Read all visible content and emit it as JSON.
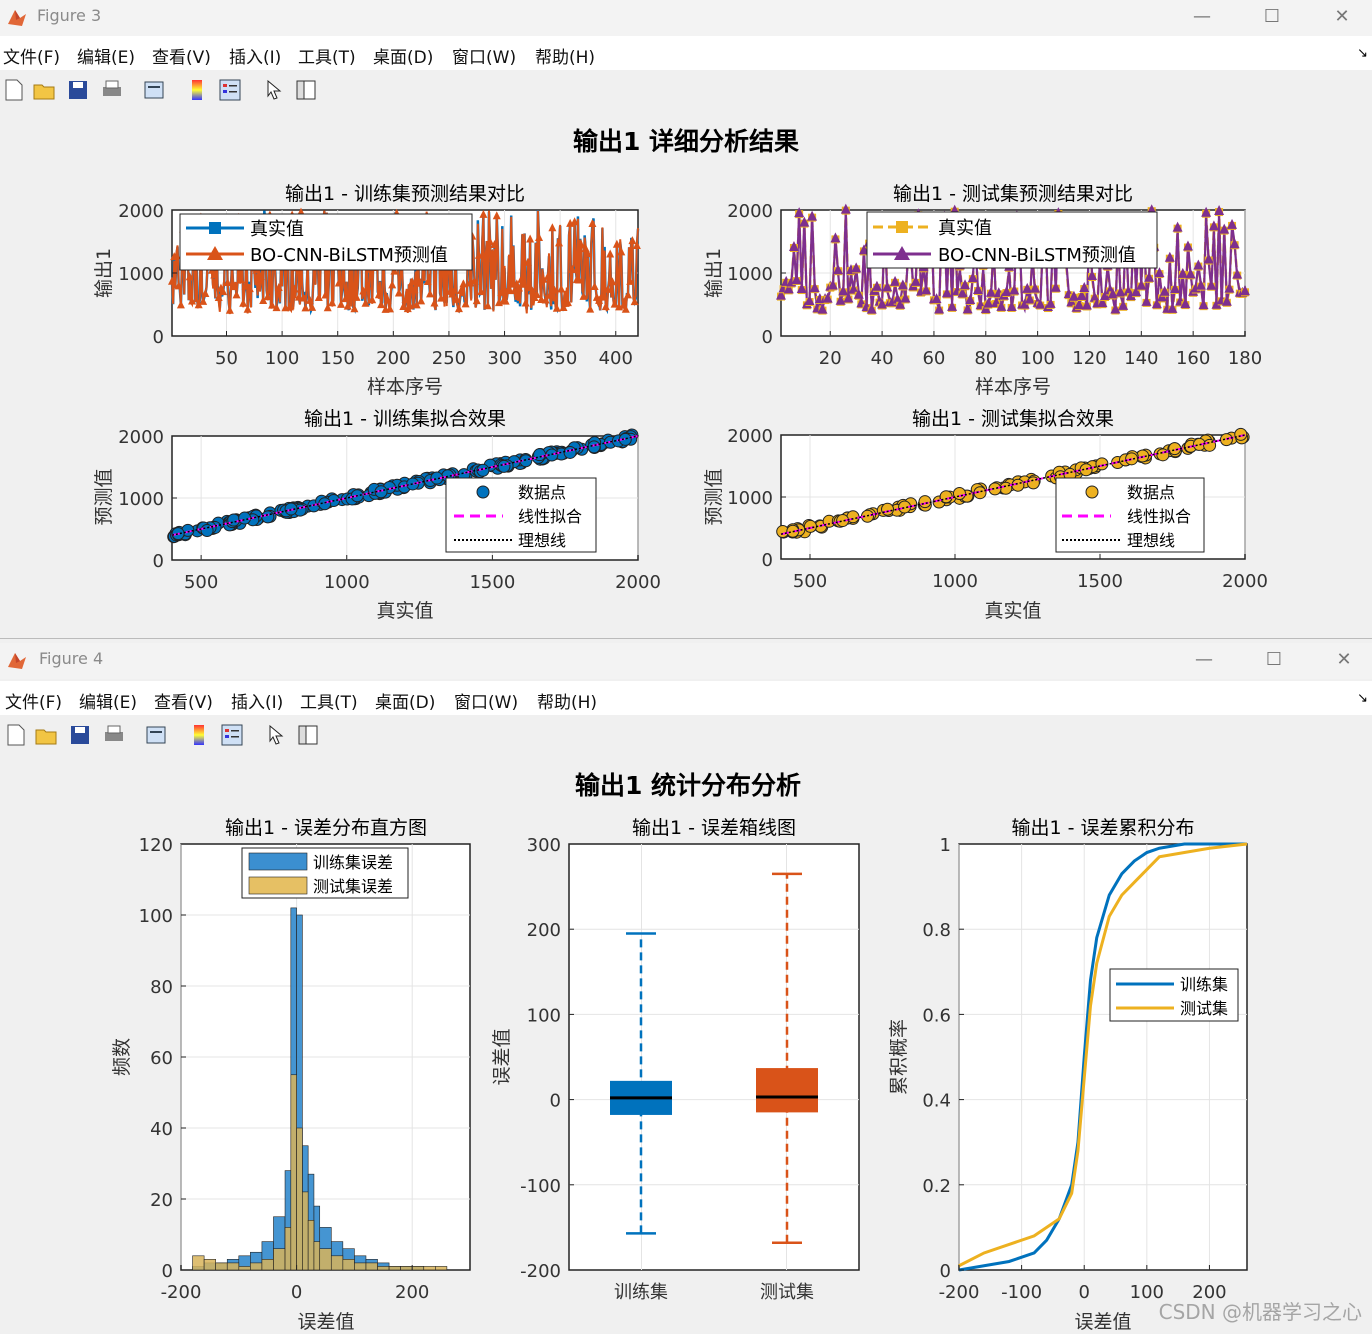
{
  "figure3": {
    "title": "Figure 3",
    "menu": [
      "文件(F)",
      "编辑(E)",
      "查看(V)",
      "插入(I)",
      "工具(T)",
      "桌面(D)",
      "窗口(W)",
      "帮助(H)"
    ],
    "suptitle": "输出1 详细分析结果",
    "train_series": {
      "title": "输出1 - 训练集预测结果对比",
      "xlabel": "样本序号",
      "ylabel": "输出1",
      "xticks": [
        "50",
        "100",
        "150",
        "200",
        "250",
        "300",
        "350",
        "400"
      ],
      "yticks": [
        "0",
        "1000",
        "2000"
      ],
      "legend": [
        "真实值",
        "BO-CNN-BiLSTM预测值"
      ]
    },
    "test_series": {
      "title": "输出1 - 测试集预测结果对比",
      "xlabel": "样本序号",
      "ylabel": "输出1",
      "xticks": [
        "20",
        "40",
        "60",
        "80",
        "100",
        "120",
        "140",
        "160",
        "180"
      ],
      "yticks": [
        "0",
        "1000",
        "2000"
      ],
      "legend": [
        "真实值",
        "BO-CNN-BiLSTM预测值"
      ]
    },
    "train_fit": {
      "title": "输出1 - 训练集拟合效果",
      "xlabel": "真实值",
      "ylabel": "预测值",
      "xticks": [
        "500",
        "1000",
        "1500",
        "2000"
      ],
      "yticks": [
        "0",
        "1000",
        "2000"
      ],
      "legend": [
        "数据点",
        "线性拟合",
        "理想线"
      ]
    },
    "test_fit": {
      "title": "输出1 - 测试集拟合效果",
      "xlabel": "真实值",
      "ylabel": "预测值",
      "xticks": [
        "500",
        "1000",
        "1500",
        "2000"
      ],
      "yticks": [
        "0",
        "1000",
        "2000"
      ],
      "legend": [
        "数据点",
        "线性拟合",
        "理想线"
      ]
    }
  },
  "figure4": {
    "title": "Figure 4",
    "menu": [
      "文件(F)",
      "编辑(E)",
      "查看(V)",
      "插入(I)",
      "工具(T)",
      "桌面(D)",
      "窗口(W)",
      "帮助(H)"
    ],
    "suptitle": "输出1 统计分布分析",
    "hist": {
      "title": "输出1 - 误差分布直方图",
      "xlabel": "误差值",
      "ylabel": "频数",
      "xticks": [
        "-200",
        "0",
        "200"
      ],
      "yticks": [
        "0",
        "20",
        "40",
        "60",
        "80",
        "100",
        "120"
      ],
      "legend": [
        "训练集误差",
        "测试集误差"
      ]
    },
    "box": {
      "title": "输出1 - 误差箱线图",
      "ylabel": "误差值",
      "categories": [
        "训练集",
        "测试集"
      ],
      "yticks": [
        "-200",
        "-100",
        "0",
        "100",
        "200",
        "300"
      ]
    },
    "cdf": {
      "title": "输出1 - 误差累积分布",
      "xlabel": "误差值",
      "ylabel": "累积概率",
      "xticks": [
        "-200",
        "-100",
        "0",
        "100",
        "200"
      ],
      "yticks": [
        "0",
        "0.2",
        "0.4",
        "0.6",
        "0.8",
        "1"
      ],
      "legend": [
        "训练集",
        "测试集"
      ]
    }
  },
  "watermark": "CSDN @机器学习之心",
  "colors": {
    "blue": "#0072bd",
    "orange": "#d95319",
    "yellow": "#edb120",
    "purple": "#7e2f8e",
    "magenta": "#ff00ff"
  },
  "chart_data": [
    {
      "type": "line",
      "title": "输出1 - 训练集预测结果对比",
      "xlabel": "样本序号",
      "ylabel": "输出1",
      "xlim": [
        1,
        420
      ],
      "ylim": [
        0,
        2000
      ],
      "series": [
        {
          "name": "真实值",
          "values_range": [
            400,
            2000
          ]
        },
        {
          "name": "BO-CNN-BiLSTM预测值",
          "values_range": [
            400,
            2000
          ]
        }
      ],
      "legend": "top-left",
      "grid": true
    },
    {
      "type": "line",
      "title": "输出1 - 测试集预测结果对比",
      "xlabel": "样本序号",
      "ylabel": "输出1",
      "xlim": [
        1,
        180
      ],
      "ylim": [
        0,
        2000
      ],
      "series": [
        {
          "name": "真实值",
          "values_range": [
            400,
            2000
          ]
        },
        {
          "name": "BO-CNN-BiLSTM预测值",
          "values_range": [
            400,
            2000
          ]
        }
      ],
      "legend": "top-center",
      "grid": true
    },
    {
      "type": "scatter",
      "title": "输出1 - 训练集拟合效果",
      "xlabel": "真实值",
      "ylabel": "预测值",
      "xlim": [
        400,
        2000
      ],
      "ylim": [
        0,
        2000
      ],
      "series": [
        {
          "name": "数据点",
          "trend": "y≈x"
        },
        {
          "name": "线性拟合"
        },
        {
          "name": "理想线"
        }
      ],
      "legend": "bottom-right",
      "grid": true
    },
    {
      "type": "scatter",
      "title": "输出1 - 测试集拟合效果",
      "xlabel": "真实值",
      "ylabel": "预测值",
      "xlim": [
        400,
        2000
      ],
      "ylim": [
        0,
        2000
      ],
      "series": [
        {
          "name": "数据点",
          "trend": "y≈x"
        },
        {
          "name": "线性拟合"
        },
        {
          "name": "理想线"
        }
      ],
      "legend": "bottom-right",
      "grid": true
    },
    {
      "type": "bar",
      "title": "输出1 - 误差分布直方图",
      "xlabel": "误差值",
      "ylabel": "频数",
      "xlim": [
        -200,
        300
      ],
      "ylim": [
        0,
        120
      ],
      "bin_edges": [
        -180,
        -160,
        -140,
        -120,
        -100,
        -80,
        -60,
        -40,
        -20,
        -10,
        0,
        10,
        20,
        30,
        40,
        60,
        80,
        100,
        120,
        140,
        160,
        180,
        200,
        220,
        240,
        260
      ],
      "series": [
        {
          "name": "训练集误差",
          "values": [
            1,
            2,
            2,
            3,
            4,
            5,
            8,
            15,
            28,
            102,
            100,
            35,
            27,
            18,
            12,
            8,
            6,
            4,
            3,
            2,
            1,
            1,
            1,
            0,
            0
          ]
        },
        {
          "name": "测试集误差",
          "values": [
            4,
            3,
            2,
            2,
            1,
            2,
            3,
            6,
            12,
            55,
            40,
            22,
            14,
            8,
            6,
            4,
            3,
            2,
            2,
            1,
            1,
            1,
            1,
            1,
            1
          ]
        }
      ],
      "legend": "top-left"
    },
    {
      "type": "box",
      "title": "输出1 - 误差箱线图",
      "ylabel": "误差值",
      "ylim": [
        -200,
        300
      ],
      "categories": [
        "训练集",
        "测试集"
      ],
      "series": [
        {
          "name": "训练集",
          "min": -157,
          "q1": -18,
          "median": 2,
          "q3": 22,
          "max": 195
        },
        {
          "name": "测试集",
          "min": -168,
          "q1": -15,
          "median": 3,
          "q3": 37,
          "max": 265
        }
      ]
    },
    {
      "type": "line",
      "title": "输出1 - 误差累积分布",
      "xlabel": "误差值",
      "ylabel": "累积概率",
      "xlim": [
        -200,
        260
      ],
      "ylim": [
        0,
        1
      ],
      "x": [
        -200,
        -160,
        -120,
        -80,
        -60,
        -40,
        -20,
        -10,
        0,
        10,
        20,
        40,
        60,
        80,
        100,
        120,
        160,
        200,
        260
      ],
      "series": [
        {
          "name": "训练集",
          "values": [
            0,
            0.01,
            0.02,
            0.04,
            0.07,
            0.12,
            0.2,
            0.3,
            0.5,
            0.68,
            0.78,
            0.88,
            0.93,
            0.96,
            0.98,
            0.99,
            1,
            1,
            1
          ]
        },
        {
          "name": "测试集",
          "values": [
            0.01,
            0.04,
            0.06,
            0.08,
            0.1,
            0.12,
            0.18,
            0.28,
            0.45,
            0.62,
            0.72,
            0.83,
            0.88,
            0.91,
            0.94,
            0.97,
            0.98,
            0.99,
            1
          ]
        }
      ],
      "legend": "middle-right",
      "grid": true
    }
  ]
}
